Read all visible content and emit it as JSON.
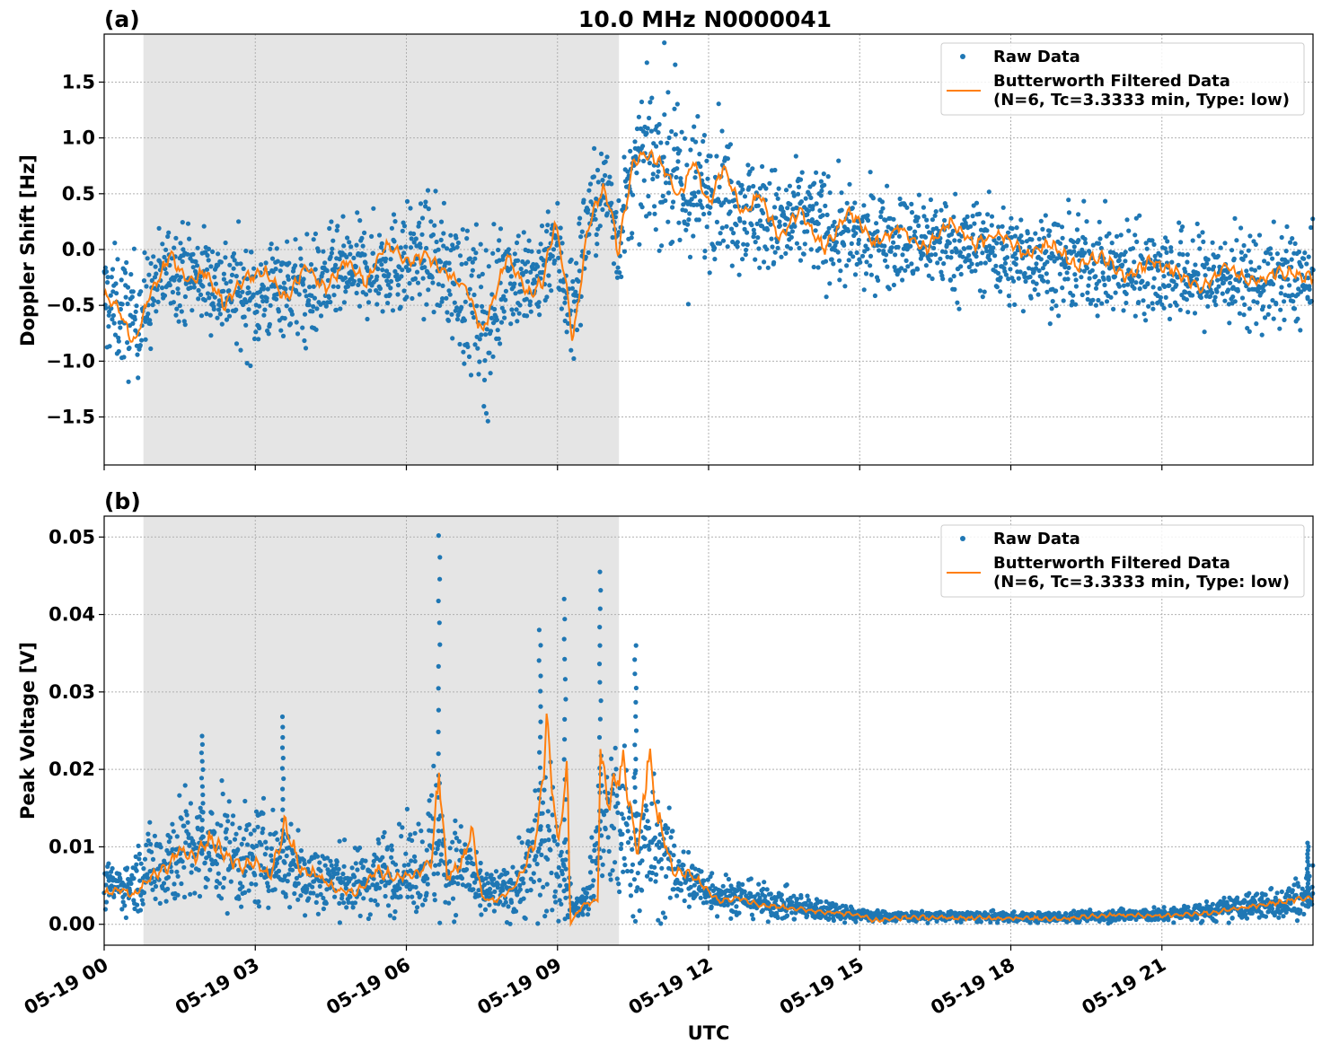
{
  "figure": {
    "title": "10.0 MHz N0000041",
    "xlabel": "UTC"
  },
  "colors": {
    "raw": "#1f77b4",
    "filtered": "#ff7f0e",
    "shade": "#e5e5e5",
    "grid": "#b0b0b0"
  },
  "legend": {
    "raw_label": "Raw Data",
    "filtered_label_line1": "Butterworth Filtered Data",
    "filtered_label_line2": "(N=6, Tc=3.3333 min, Type: low)"
  },
  "chart_data": [
    {
      "type": "scatter",
      "panel_label": "(a)",
      "title": "10.0 MHz N0000041",
      "ylabel": "Doppler Shift [Hz]",
      "xlabel": "",
      "xlim_hours": [
        0,
        24
      ],
      "ylim": [
        -1.93,
        1.93
      ],
      "yticks": [
        1.5,
        1.0,
        0.5,
        0.0,
        -0.5,
        -1.0,
        -1.5
      ],
      "ytick_labels": [
        "1.5",
        "1.0",
        "0.5",
        "0.0",
        "−0.5",
        "−1.0",
        "−1.5"
      ],
      "shaded_interval_hours": [
        0.78,
        10.22
      ],
      "grid": true,
      "legend_position": "top-right",
      "series": [
        {
          "name": "Raw Data",
          "style": "dots",
          "x_hours": [
            0,
            0.5,
            0.8,
            1.0,
            1.3,
            1.6,
            2.0,
            2.5,
            3.0,
            3.5,
            4.0,
            4.5,
            5.0,
            5.5,
            6.0,
            6.5,
            7.0,
            7.4,
            7.6,
            8.0,
            8.5,
            8.9,
            9.1,
            9.3,
            9.6,
            10.0,
            10.2,
            10.5,
            10.8,
            11.2,
            11.5,
            11.9,
            12.2,
            12.6,
            13.0,
            13.5,
            14.0,
            14.5,
            15.0,
            15.5,
            16.0,
            16.5,
            17.0,
            17.5,
            18.0,
            18.5,
            19.0,
            19.5,
            20.0,
            20.5,
            21.0,
            21.5,
            22.0,
            22.5,
            23.0,
            23.5,
            23.99
          ],
          "center": [
            -0.45,
            -0.6,
            -0.55,
            -0.35,
            -0.15,
            -0.2,
            -0.25,
            -0.35,
            -0.45,
            -0.3,
            -0.4,
            -0.25,
            -0.2,
            -0.15,
            -0.1,
            -0.05,
            -0.3,
            -0.55,
            -0.7,
            -0.15,
            -0.35,
            0.1,
            -0.2,
            -0.6,
            0.3,
            0.55,
            0.1,
            0.65,
            0.85,
            0.8,
            0.45,
            0.5,
            0.6,
            0.4,
            0.3,
            0.2,
            0.3,
            0.15,
            0.05,
            0.15,
            0.05,
            0.1,
            0.0,
            0.05,
            -0.1,
            -0.05,
            -0.15,
            -0.1,
            -0.2,
            -0.15,
            -0.2,
            -0.25,
            -0.25,
            -0.25,
            -0.3,
            -0.25,
            -0.3
          ],
          "spread": [
            0.45,
            0.5,
            0.45,
            0.4,
            0.35,
            0.4,
            0.4,
            0.45,
            0.45,
            0.4,
            0.45,
            0.4,
            0.4,
            0.4,
            0.45,
            0.45,
            0.55,
            0.7,
            0.7,
            0.45,
            0.5,
            0.4,
            0.5,
            0.55,
            0.45,
            0.4,
            0.45,
            0.45,
            0.55,
            0.75,
            0.75,
            0.6,
            0.55,
            0.5,
            0.45,
            0.45,
            0.45,
            0.45,
            0.4,
            0.4,
            0.4,
            0.4,
            0.4,
            0.4,
            0.4,
            0.4,
            0.4,
            0.4,
            0.4,
            0.4,
            0.4,
            0.4,
            0.4,
            0.4,
            0.4,
            0.4,
            0.4
          ]
        },
        {
          "name": "Butterworth Filtered Data (N=6, Tc=3.3333 min, Type: low)",
          "style": "line",
          "x_hours": [
            0,
            0.3,
            0.6,
            0.9,
            1.3,
            1.7,
            2.0,
            2.4,
            2.8,
            3.2,
            3.6,
            4.0,
            4.4,
            4.8,
            5.2,
            5.6,
            6.0,
            6.4,
            6.8,
            7.2,
            7.5,
            7.7,
            8.0,
            8.4,
            8.7,
            8.95,
            9.2,
            9.3,
            9.6,
            9.9,
            10.1,
            10.2,
            10.5,
            10.8,
            11.1,
            11.4,
            11.7,
            12.0,
            12.3,
            12.7,
            13.0,
            13.4,
            13.8,
            14.3,
            14.8,
            15.3,
            15.8,
            16.3,
            16.8,
            17.3,
            17.8,
            18.3,
            18.8,
            19.3,
            19.8,
            20.3,
            20.8,
            21.3,
            21.8,
            22.3,
            22.8,
            23.3,
            23.99
          ],
          "y": [
            -0.4,
            -0.55,
            -0.85,
            -0.4,
            -0.05,
            -0.3,
            -0.2,
            -0.5,
            -0.25,
            -0.2,
            -0.45,
            -0.15,
            -0.35,
            -0.1,
            -0.3,
            0.05,
            -0.1,
            -0.05,
            -0.2,
            -0.35,
            -0.75,
            -0.5,
            -0.05,
            -0.4,
            -0.3,
            0.25,
            -0.4,
            -0.85,
            0.2,
            0.55,
            0.3,
            -0.05,
            0.8,
            0.85,
            0.75,
            0.45,
            0.8,
            0.4,
            0.75,
            0.3,
            0.5,
            0.1,
            0.35,
            0.0,
            0.35,
            0.05,
            0.2,
            0.0,
            0.25,
            0.05,
            0.15,
            -0.05,
            0.05,
            -0.15,
            -0.05,
            -0.25,
            -0.1,
            -0.2,
            -0.35,
            -0.15,
            -0.3,
            -0.2,
            -0.25
          ]
        }
      ]
    },
    {
      "type": "scatter",
      "panel_label": "(b)",
      "title": "",
      "ylabel": "Peak Voltage [V]",
      "xlabel": "UTC",
      "xlim_hours": [
        0,
        24
      ],
      "ylim": [
        -0.0027,
        0.0527
      ],
      "yticks": [
        0.05,
        0.04,
        0.03,
        0.02,
        0.01,
        0.0
      ],
      "ytick_labels": [
        "0.05",
        "0.04",
        "0.03",
        "0.02",
        "0.01",
        "0.00"
      ],
      "xticks_hours": [
        0,
        3,
        6,
        9,
        12,
        15,
        18,
        21
      ],
      "xtick_labels": [
        "05-19 00",
        "05-19 03",
        "05-19 06",
        "05-19 09",
        "05-19 12",
        "05-19 15",
        "05-19 18",
        "05-19 21"
      ],
      "shaded_interval_hours": [
        0.78,
        10.22
      ],
      "grid": true,
      "legend_position": "top-right",
      "series": [
        {
          "name": "Raw Data",
          "style": "dots",
          "x_hours": [
            0,
            0.5,
            0.8,
            1.2,
            1.6,
            2.0,
            2.4,
            2.8,
            3.2,
            3.6,
            4.0,
            4.5,
            5.0,
            5.5,
            6.0,
            6.4,
            6.6,
            6.8,
            7.2,
            7.4,
            7.7,
            8.0,
            8.4,
            8.7,
            9.0,
            9.2,
            9.3,
            9.6,
            9.8,
            10.0,
            10.3,
            10.6,
            10.9,
            11.2,
            11.5,
            11.8,
            12.2,
            12.6,
            13.0,
            13.5,
            14.0,
            14.5,
            15.0,
            15.5,
            16.0,
            17.0,
            18.0,
            19.0,
            20.0,
            21.0,
            22.0,
            22.5,
            23.0,
            23.5,
            23.99
          ],
          "center": [
            0.005,
            0.005,
            0.007,
            0.008,
            0.01,
            0.009,
            0.01,
            0.008,
            0.009,
            0.008,
            0.006,
            0.006,
            0.005,
            0.007,
            0.007,
            0.008,
            0.012,
            0.007,
            0.008,
            0.004,
            0.004,
            0.004,
            0.007,
            0.011,
            0.008,
            0.005,
            0.002,
            0.003,
            0.012,
            0.013,
            0.012,
            0.01,
            0.01,
            0.008,
            0.006,
            0.005,
            0.004,
            0.0035,
            0.003,
            0.0025,
            0.002,
            0.0018,
            0.0012,
            0.001,
            0.001,
            0.001,
            0.0009,
            0.0009,
            0.0012,
            0.0012,
            0.0017,
            0.0022,
            0.0025,
            0.003,
            0.004
          ],
          "spread": [
            0.0025,
            0.003,
            0.0045,
            0.006,
            0.007,
            0.006,
            0.007,
            0.006,
            0.006,
            0.0055,
            0.0045,
            0.0045,
            0.004,
            0.005,
            0.005,
            0.006,
            0.012,
            0.005,
            0.006,
            0.003,
            0.003,
            0.003,
            0.006,
            0.011,
            0.008,
            0.004,
            0.001,
            0.002,
            0.01,
            0.011,
            0.01,
            0.009,
            0.008,
            0.006,
            0.004,
            0.003,
            0.0025,
            0.0022,
            0.002,
            0.0018,
            0.0015,
            0.0012,
            0.0008,
            0.0006,
            0.0006,
            0.0006,
            0.0006,
            0.0006,
            0.0008,
            0.0008,
            0.0012,
            0.0015,
            0.0018,
            0.0022,
            0.003
          ],
          "peaks": [
            {
              "x": 6.65,
              "y": 0.0502
            },
            {
              "x": 9.85,
              "y": 0.0455
            },
            {
              "x": 9.15,
              "y": 0.042
            },
            {
              "x": 8.65,
              "y": 0.038
            },
            {
              "x": 3.55,
              "y": 0.0268
            },
            {
              "x": 1.95,
              "y": 0.0243
            },
            {
              "x": 10.55,
              "y": 0.036
            },
            {
              "x": 23.9,
              "y": 0.0105
            }
          ]
        },
        {
          "name": "Butterworth Filtered Data (N=6, Tc=3.3333 min, Type: low)",
          "style": "line",
          "x_hours": [
            0,
            0.3,
            0.6,
            0.9,
            1.2,
            1.5,
            1.8,
            2.1,
            2.4,
            2.7,
            3.0,
            3.3,
            3.6,
            3.9,
            4.2,
            4.6,
            5.0,
            5.4,
            5.8,
            6.2,
            6.5,
            6.65,
            6.8,
            7.1,
            7.3,
            7.5,
            7.8,
            8.1,
            8.4,
            8.6,
            8.8,
            9.0,
            9.2,
            9.25,
            9.5,
            9.8,
            9.85,
            10.0,
            10.3,
            10.6,
            10.8,
            11.0,
            11.3,
            11.6,
            11.9,
            12.2,
            12.6,
            13.0,
            13.5,
            14.0,
            14.5,
            15.0,
            15.3,
            16.0,
            17.0,
            18.0,
            19.0,
            19.5,
            20.0,
            21.0,
            22.0,
            22.5,
            23.0,
            23.5,
            23.99
          ],
          "y": [
            0.004,
            0.0045,
            0.0038,
            0.006,
            0.007,
            0.0095,
            0.0085,
            0.011,
            0.009,
            0.0075,
            0.008,
            0.006,
            0.013,
            0.007,
            0.0065,
            0.0045,
            0.004,
            0.007,
            0.006,
            0.0065,
            0.008,
            0.02,
            0.006,
            0.008,
            0.012,
            0.0035,
            0.003,
            0.0045,
            0.008,
            0.012,
            0.026,
            0.01,
            0.02,
            0.0,
            0.0025,
            0.003,
            0.0235,
            0.016,
            0.0205,
            0.009,
            0.0225,
            0.0135,
            0.007,
            0.0065,
            0.005,
            0.003,
            0.0035,
            0.0025,
            0.0022,
            0.0018,
            0.0015,
            0.0012,
            0.0005,
            0.0009,
            0.0008,
            0.0008,
            0.0007,
            0.001,
            0.0012,
            0.0011,
            0.0015,
            0.002,
            0.0025,
            0.003,
            0.0035
          ]
        }
      ]
    }
  ]
}
